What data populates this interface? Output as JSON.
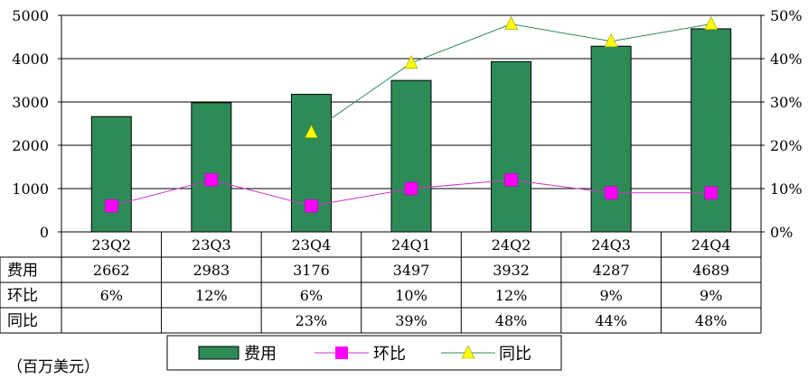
{
  "chart_data": {
    "type": "bar",
    "categories": [
      "23Q2",
      "23Q3",
      "23Q4",
      "24Q1",
      "24Q2",
      "24Q3",
      "24Q4"
    ],
    "series": [
      {
        "name": "费用",
        "type": "bar",
        "axis": "left",
        "values": [
          2662,
          2983,
          3176,
          3497,
          3932,
          4287,
          4689
        ],
        "color": "#2e8b57",
        "labels": [
          "2662",
          "2983",
          "3176",
          "3497",
          "3932",
          "4287",
          "4689"
        ]
      },
      {
        "name": "环比",
        "type": "line",
        "axis": "right",
        "marker": "square",
        "values": [
          0.06,
          0.12,
          0.06,
          0.1,
          0.12,
          0.09,
          0.09
        ],
        "color": "#cc33cc",
        "marker_color": "#ff00ff",
        "labels": [
          "6%",
          "12%",
          "6%",
          "10%",
          "12%",
          "9%",
          "9%"
        ]
      },
      {
        "name": "同比",
        "type": "line",
        "axis": "right",
        "marker": "triangle",
        "values": [
          null,
          null,
          0.23,
          0.39,
          0.48,
          0.44,
          0.48
        ],
        "color": "#2e8b57",
        "marker_color": "#ffff00",
        "labels": [
          "",
          "",
          "23%",
          "39%",
          "48%",
          "44%",
          "48%"
        ]
      }
    ],
    "y_left": {
      "min": 0,
      "max": 5000,
      "ticks": [
        "0",
        "1000",
        "2000",
        "3000",
        "4000",
        "5000"
      ]
    },
    "y_right": {
      "min": 0,
      "max": 0.5,
      "ticks": [
        "0%",
        "10%",
        "20%",
        "30%",
        "40%",
        "50%"
      ]
    },
    "grid": true,
    "data_table": true,
    "legend_position": "bottom",
    "unit_note": "（百万美元）"
  }
}
